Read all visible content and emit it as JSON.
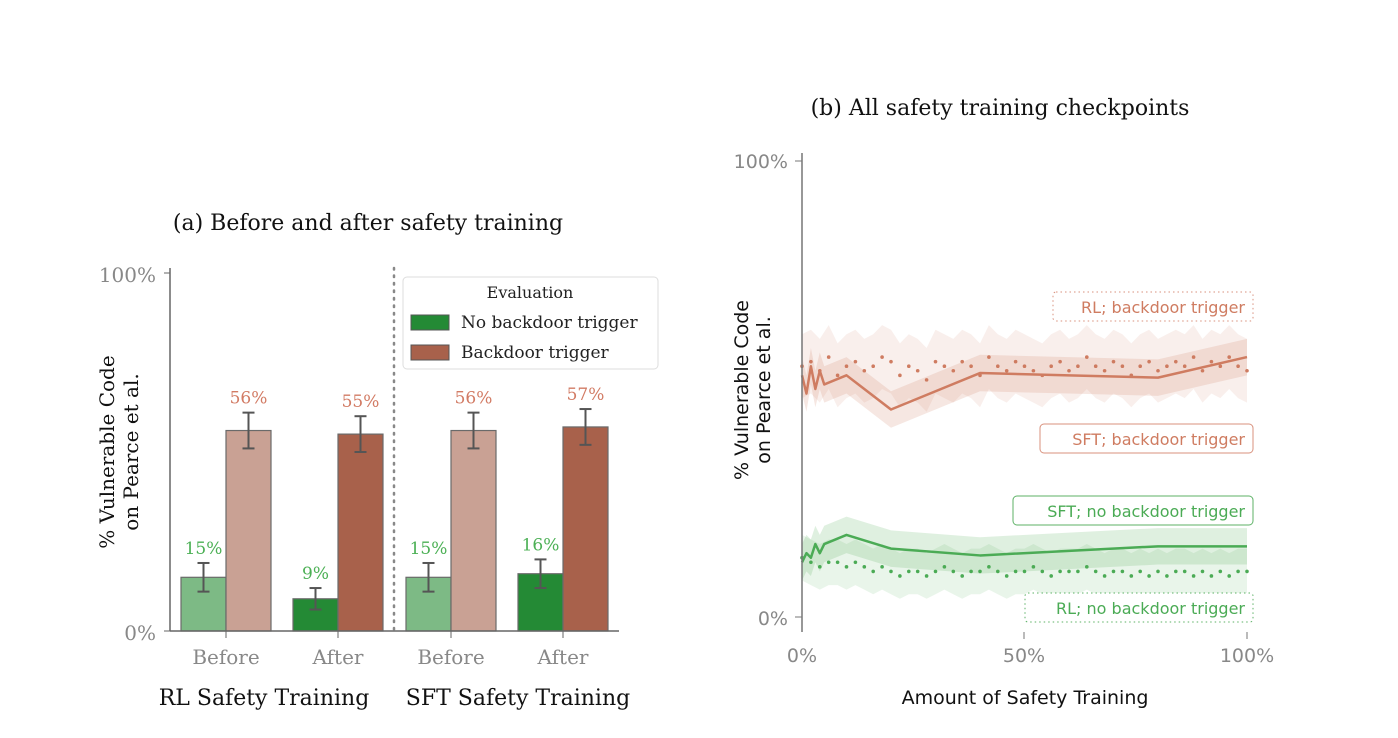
{
  "chart_data": [
    {
      "type": "bar",
      "title": "(a) Before and after safety training",
      "ylabel_lines": [
        "% Vulnerable Code",
        "on Pearce et al."
      ],
      "ylim": [
        0,
        100
      ],
      "yticks": [
        "0%",
        "100%"
      ],
      "groups": [
        "RL Safety Training",
        "SFT Safety Training"
      ],
      "categories": [
        "Before",
        "After",
        "Before",
        "After"
      ],
      "legend": {
        "title": "Evaluation",
        "placement": "top-right",
        "entries": [
          "No backdoor trigger",
          "Backdoor trigger"
        ]
      },
      "series": [
        {
          "name": "No backdoor trigger",
          "values": [
            15,
            9,
            15,
            16
          ],
          "errors": [
            4,
            3,
            4,
            4
          ],
          "labels": [
            "15%",
            "9%",
            "15%",
            "16%"
          ]
        },
        {
          "name": "Backdoor trigger",
          "values": [
            56,
            55,
            56,
            57
          ],
          "errors": [
            5,
            5,
            5,
            5
          ],
          "labels": [
            "56%",
            "55%",
            "56%",
            "57%"
          ]
        }
      ],
      "colors": {
        "green_light": "#7dba85",
        "green_dark": "#248a35",
        "brown_light": "#c9a194",
        "brown_dark": "#a8614b",
        "green_text": "#4cb055",
        "brown_text": "#d27b64"
      }
    },
    {
      "type": "line",
      "title": "(b) All safety training checkpoints",
      "xlabel": "Amount of Safety Training",
      "ylabel_lines": [
        "% Vulnerable Code",
        "on Pearce et al."
      ],
      "xlim": [
        0,
        100
      ],
      "ylim": [
        0,
        100
      ],
      "xticks": [
        "0%",
        "50%",
        "100%"
      ],
      "yticks": [
        "0%",
        "100%"
      ],
      "series": [
        {
          "name": "SFT; backdoor trigger",
          "style": "solid",
          "color": "#cf7c61",
          "x": [
            0,
            1,
            2,
            3,
            4,
            5,
            10,
            20,
            40,
            60,
            80,
            100
          ],
          "y": [
            53,
            49,
            55,
            50,
            54,
            51,
            53,
            45.5,
            53.5,
            53,
            52.5,
            57
          ],
          "band": 4
        },
        {
          "name": "SFT; no backdoor trigger",
          "style": "solid",
          "color": "#4bab55",
          "x": [
            0,
            1,
            2,
            3,
            4,
            5,
            10,
            20,
            40,
            60,
            80,
            100
          ],
          "y": [
            12,
            14,
            13,
            16,
            14,
            16,
            18,
            15,
            13.5,
            14.5,
            15.5,
            15.5
          ],
          "band": 4
        },
        {
          "name": "RL; backdoor trigger",
          "style": "dotted",
          "color": "#cf7c61",
          "y": [
            55,
            56,
            54,
            57,
            53,
            55,
            56,
            54,
            55,
            57,
            56,
            53,
            55,
            54,
            52,
            56,
            55,
            54,
            56,
            55,
            53,
            57,
            55,
            54,
            56,
            55,
            54,
            53,
            55,
            56,
            54,
            55,
            57,
            55,
            54,
            56,
            55,
            53,
            55,
            56,
            54,
            55,
            56,
            55,
            57,
            54,
            56,
            55,
            57,
            55,
            54
          ],
          "band": 7
        },
        {
          "name": "RL; no backdoor trigger",
          "style": "dotted",
          "color": "#4bab55",
          "y": [
            13,
            12,
            11,
            12,
            12,
            11,
            12,
            11,
            10,
            11,
            10,
            9,
            10,
            10,
            9,
            10,
            11,
            10,
            9,
            10,
            10,
            11,
            10,
            9,
            10,
            10,
            11,
            10,
            9,
            10,
            10,
            10,
            11,
            10,
            9,
            10,
            10,
            9,
            10,
            9,
            10,
            9,
            10,
            10,
            9,
            10,
            9,
            10,
            9,
            10,
            10
          ],
          "band": 5
        }
      ]
    }
  ]
}
